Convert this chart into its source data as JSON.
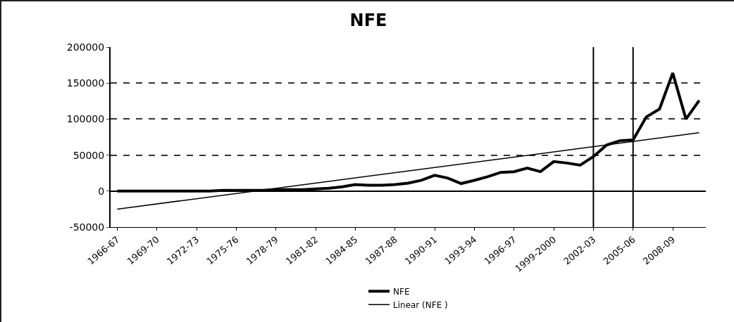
{
  "chart_data": {
    "type": "line",
    "title": "NFE",
    "categories": [
      "1966-67",
      null,
      null,
      "1969-70",
      null,
      null,
      "1972-73",
      null,
      null,
      "1975-76",
      null,
      null,
      "1978-79",
      null,
      null,
      "1981-82",
      null,
      null,
      "1984-85",
      null,
      null,
      "1987-88",
      null,
      null,
      "1990-91",
      null,
      null,
      "1993-94",
      null,
      null,
      "1996-97",
      null,
      null,
      "1999-2000",
      null,
      null,
      "2002-03",
      null,
      null,
      "2005-06",
      null,
      null,
      "2008-09",
      null,
      null
    ],
    "series": [
      {
        "name": "NFE",
        "color": "#000000",
        "values": [
          0,
          0,
          0,
          0,
          0,
          0,
          0,
          0,
          1000,
          1000,
          1000,
          1000,
          2000,
          2000,
          2000,
          3000,
          4000,
          6000,
          9000,
          8000,
          8000,
          9000,
          11000,
          15000,
          22000,
          18000,
          10500,
          15000,
          20000,
          26000,
          27000,
          32000,
          27000,
          41000,
          39000,
          36000,
          48000,
          64000,
          70000,
          71000,
          103000,
          114000,
          164000,
          100000,
          126000
        ]
      },
      {
        "name": "Linear (NFE )",
        "type": "line",
        "color": "#000000",
        "values": [
          -25000,
          null,
          null,
          null,
          null,
          null,
          null,
          null,
          null,
          null,
          null,
          null,
          null,
          null,
          null,
          null,
          null,
          null,
          null,
          null,
          null,
          null,
          null,
          null,
          null,
          null,
          null,
          null,
          null,
          null,
          null,
          null,
          null,
          null,
          null,
          null,
          null,
          null,
          null,
          null,
          null,
          null,
          null,
          null,
          81000
        ]
      }
    ],
    "ylim": [
      -50000,
      200000
    ],
    "yticks": [
      -50000,
      0,
      50000,
      100000,
      150000,
      200000
    ],
    "ref_lines": [
      {
        "axis": "x",
        "value": "2002-03",
        "color": "#000000"
      },
      {
        "axis": "x",
        "value": "2005-06",
        "color": "#000000"
      }
    ],
    "grid": "y",
    "legend": "bottom",
    "marker": "none",
    "line_style": "solid"
  }
}
